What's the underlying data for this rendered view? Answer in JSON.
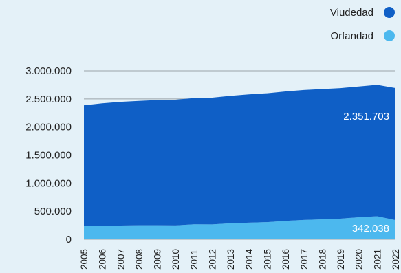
{
  "chart_data": {
    "type": "area",
    "stacked": true,
    "x": [
      "2005",
      "2006",
      "2007",
      "2008",
      "2009",
      "2010",
      "2011",
      "2012",
      "2013",
      "2014",
      "2015",
      "2016",
      "2017",
      "2018",
      "2019",
      "2020",
      "2021",
      "2022"
    ],
    "series": [
      {
        "name": "Orfandad",
        "color": "#4cb8ee",
        "values": [
          236000,
          244000,
          245000,
          249000,
          250000,
          246000,
          267000,
          265000,
          285000,
          296000,
          305000,
          328000,
          345000,
          355000,
          368000,
          392000,
          410000,
          342038
        ]
      },
      {
        "name": "Viudedad",
        "color": "#0f5fc6",
        "values": [
          2150000,
          2177000,
          2202000,
          2216000,
          2230000,
          2240000,
          2248000,
          2258000,
          2270000,
          2285000,
          2296000,
          2305000,
          2313000,
          2320000,
          2325000,
          2330000,
          2340000,
          2351703
        ]
      }
    ],
    "ylim": [
      0,
      3000000
    ],
    "yticks": [
      "0",
      "500.000",
      "1.000.000",
      "1.500.000",
      "2.000.000",
      "2.500.000",
      "3.000.000"
    ],
    "grid": true,
    "legend": {
      "position": "top-right",
      "entries": [
        {
          "label": "Viudedad",
          "color": "#0f5fc6"
        },
        {
          "label": "Orfandad",
          "color": "#4cb8ee"
        }
      ]
    },
    "data_labels": {
      "viudedad": "2.351.703",
      "orfandad": "342.038"
    }
  }
}
